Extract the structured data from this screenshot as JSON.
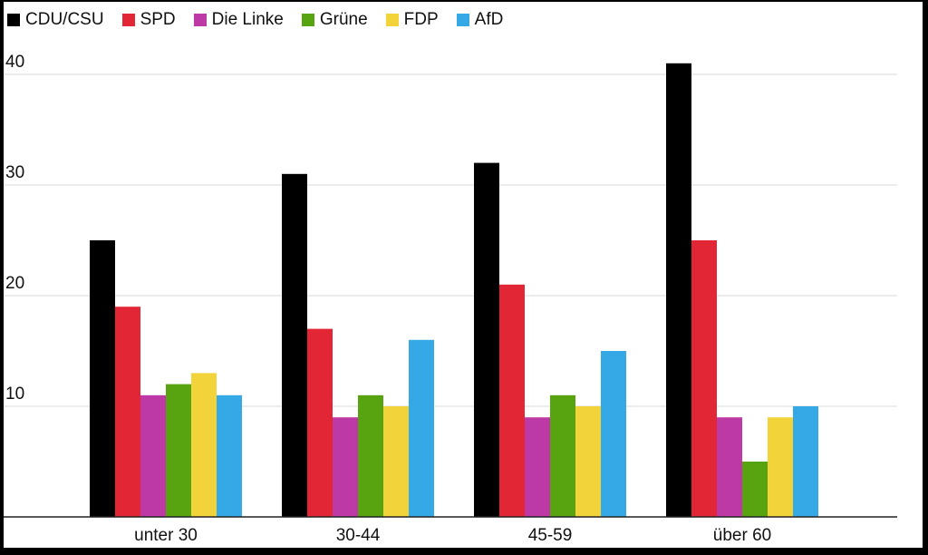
{
  "chart_data": {
    "type": "bar",
    "title": "",
    "xlabel": "",
    "ylabel": "",
    "categories": [
      "unter 30",
      "30-44",
      "45-59",
      "über 60"
    ],
    "series": [
      {
        "name": "CDU/CSU",
        "color": "#000000",
        "values": [
          25,
          31,
          32,
          41
        ]
      },
      {
        "name": "SPD",
        "color": "#e32636",
        "values": [
          19,
          17,
          21,
          25
        ]
      },
      {
        "name": "Die Linke",
        "color": "#bd3aa6",
        "values": [
          11,
          9,
          9,
          9
        ]
      },
      {
        "name": "Grüne",
        "color": "#57a410",
        "values": [
          12,
          11,
          11,
          5
        ]
      },
      {
        "name": "FDP",
        "color": "#f3d33a",
        "values": [
          13,
          10,
          10,
          9
        ]
      },
      {
        "name": "AfD",
        "color": "#35a9e6",
        "values": [
          11,
          16,
          15,
          10
        ]
      }
    ],
    "ylim": [
      0,
      40
    ],
    "yticks": [
      10,
      20,
      30,
      40
    ],
    "grid": true,
    "legend_position": "top-left"
  }
}
